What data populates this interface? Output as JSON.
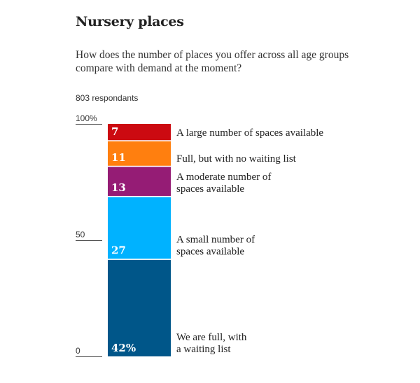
{
  "title": "Nursery places",
  "subtitle": "How does the number of places you offer across all age groups compare with demand at the moment?",
  "respondents_note": "803 respondants",
  "chart_data": {
    "type": "bar",
    "stacked": true,
    "ylim": [
      0,
      100
    ],
    "y_ticks": [
      {
        "value": 100,
        "label": "100%"
      },
      {
        "value": 50,
        "label": "50"
      },
      {
        "value": 0,
        "label": "0"
      }
    ],
    "segments": [
      {
        "value": 42,
        "value_label": "42%",
        "label_lines": [
          "We are full, with",
          "a waiting list"
        ],
        "color": "#005689"
      },
      {
        "value": 27,
        "value_label": "27",
        "label_lines": [
          "A small number of",
          "spaces available"
        ],
        "color": "#00b2ff"
      },
      {
        "value": 13,
        "value_label": "13",
        "label_lines": [
          "A moderate number of",
          "spaces available"
        ],
        "color": "#951c75"
      },
      {
        "value": 11,
        "value_label": "11",
        "label_lines": [
          "Full, but with no waiting list"
        ],
        "color": "#ff7f0f"
      },
      {
        "value": 7,
        "value_label": "7",
        "label_lines": [
          "A large number of spaces available"
        ],
        "color": "#cc0a11"
      }
    ]
  }
}
